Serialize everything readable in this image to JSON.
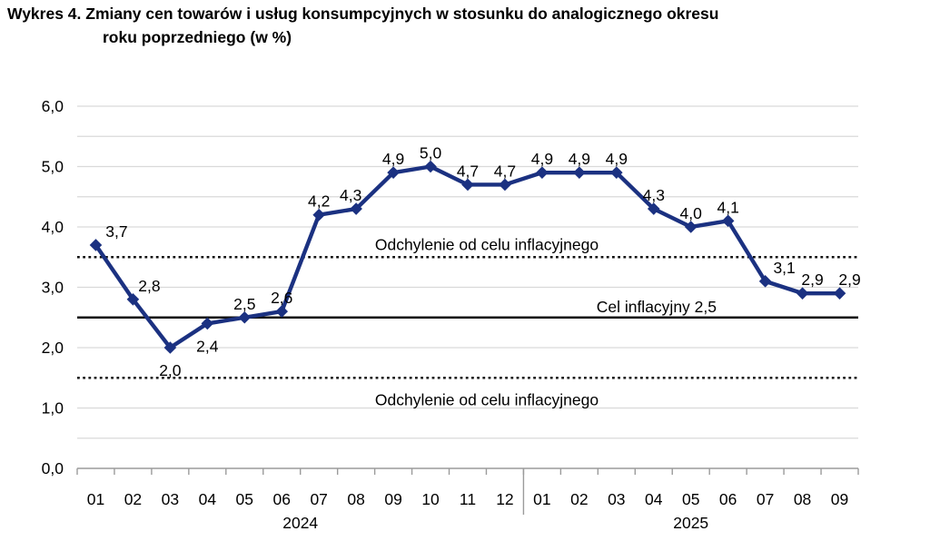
{
  "title": {
    "line1": "Wykres 4. Zmiany cen towarów i usług konsumpcyjnych w stosunku do analogicznego okresu",
    "line2": "roku poprzedniego (w %)"
  },
  "chart_data": {
    "type": "line",
    "series": [
      {
        "name": "Zmiany cen towarów i usług konsumpcyjnych r/r (%)",
        "values": [
          3.7,
          2.8,
          2.0,
          2.4,
          2.5,
          2.6,
          4.2,
          4.3,
          4.9,
          5.0,
          4.7,
          4.7,
          4.9,
          4.9,
          4.9,
          4.3,
          4.0,
          4.1,
          3.1,
          2.9,
          2.9
        ]
      }
    ],
    "categories": [
      "01",
      "02",
      "03",
      "04",
      "05",
      "06",
      "07",
      "08",
      "09",
      "10",
      "11",
      "12",
      "01",
      "02",
      "03",
      "04",
      "05",
      "06",
      "07",
      "08",
      "09"
    ],
    "category_groups": [
      {
        "label": "2024",
        "count": 12
      },
      {
        "label": "2025",
        "count": 9
      }
    ],
    "point_labels": [
      "3,7",
      "2,8",
      "2,0",
      "2,4",
      "2,5",
      "2,6",
      "4,2",
      "4,3",
      "4,9",
      "5,0",
      "4,7",
      "4,7",
      "4,9",
      "4,9",
      "4,9",
      "4,3",
      "4,0",
      "4,1",
      "3,1",
      "2,9",
      "2,9"
    ],
    "label_positions": [
      "above",
      "above",
      "below",
      "below",
      "above",
      "above",
      "above",
      "above",
      "above",
      "above",
      "above",
      "above",
      "above",
      "above",
      "above",
      "above",
      "above",
      "above",
      "above",
      "above",
      "above"
    ],
    "label_dx": {
      "0": 23,
      "1": 18,
      "7": -6,
      "18": 21,
      "19": 11,
      "20": 11
    },
    "ylim": [
      0,
      6
    ],
    "ytick_labels": [
      "0,0",
      "1,0",
      "2,0",
      "3,0",
      "4,0",
      "5,0",
      "6,0"
    ],
    "grid_step": 0.5,
    "grid_on": true,
    "legend": "none",
    "reference_lines": [
      {
        "value": 3.5,
        "style": "dotted",
        "label": "Odchylenie od celu inflacyjnego",
        "label_pos": "above-center"
      },
      {
        "value": 2.5,
        "style": "solid",
        "label": "Cel inflacyjny 2,5",
        "label_pos": "above-right"
      },
      {
        "value": 1.5,
        "style": "dotted",
        "label": "Odchylenie od celu inflacyjnego",
        "label_pos": "below-center"
      }
    ],
    "colors": {
      "line": "#1b3181",
      "grid": "#d9d9d9",
      "axis": "#9b9b9b",
      "reference": "#111111",
      "text": "#000000"
    }
  }
}
